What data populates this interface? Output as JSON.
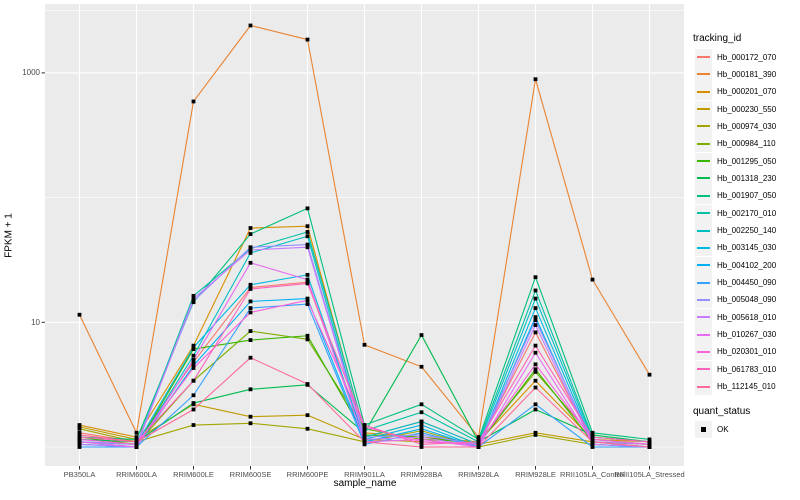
{
  "axes": {
    "x_title": "sample_name",
    "y_title": "FPKM + 1"
  },
  "legend": {
    "tracking_title": "tracking_id",
    "quant_title": "quant_status",
    "quant_items": [
      {
        "label": "OK",
        "marker": "black-square"
      }
    ]
  },
  "chart_data": {
    "type": "line",
    "title": "",
    "xlabel": "sample_name",
    "ylabel": "FPKM + 1",
    "y_scale": "log10",
    "y_ticks": [
      10,
      1000
    ],
    "y_minor_ticks": [
      1,
      100,
      3162
    ],
    "ylim_approx": [
      0.9,
      3500
    ],
    "grid": true,
    "legend_position": "right",
    "panel_bg": "#ebebeb",
    "grid_color": "#ffffff",
    "point_color": "#000000",
    "point_shape": "square",
    "categories": [
      "PB350LA",
      "RRIM600LA",
      "RRIM600LE",
      "RRIM600SE",
      "RRIM600PE",
      "RRIM901LA",
      "RRIM928BA",
      "RRIM928LA",
      "RRIM928LE",
      "RRII105LA_Control",
      "RRII105LA_Stressed"
    ],
    "series": [
      {
        "name": "Hb_000172_070",
        "color": "#F8766D",
        "values": [
          1.3,
          1.1,
          4.8,
          19,
          21,
          1.2,
          1.6,
          1.05,
          8.3,
          1.1,
          1.05
        ]
      },
      {
        "name": "Hb_000181_390",
        "color": "#EA8331",
        "values": [
          11.5,
          1.3,
          590,
          2400,
          1850,
          6.6,
          4.4,
          1.2,
          890,
          22,
          3.8
        ]
      },
      {
        "name": "Hb_000201_070",
        "color": "#D89000",
        "values": [
          1.5,
          1.2,
          6.5,
          57,
          59,
          1.3,
          1.2,
          1.1,
          3.4,
          1.15,
          1.1
        ]
      },
      {
        "name": "Hb_000230_550",
        "color": "#C09B00",
        "values": [
          1.45,
          1.15,
          2.2,
          1.75,
          1.8,
          1.15,
          1.1,
          1.05,
          1.3,
          1.1,
          1.05
        ]
      },
      {
        "name": "Hb_000974_030",
        "color": "#A3A500",
        "values": [
          1.4,
          1.1,
          1.5,
          1.55,
          1.4,
          1.1,
          1.35,
          1.0,
          1.25,
          1.05,
          1.0
        ]
      },
      {
        "name": "Hb_000984_110",
        "color": "#7CAE00",
        "values": [
          1.2,
          1.05,
          3.4,
          8.5,
          7.3,
          1.4,
          1.15,
          1.1,
          4.0,
          1.2,
          1.1
        ]
      },
      {
        "name": "Hb_001295_050",
        "color": "#39B600",
        "values": [
          1.1,
          1.0,
          6.1,
          7.2,
          7.8,
          1.25,
          1.2,
          1.05,
          4.2,
          1.1,
          1.0
        ]
      },
      {
        "name": "Hb_001318_230",
        "color": "#00BB4E",
        "values": [
          1.15,
          1.1,
          2.25,
          2.9,
          3.15,
          1.3,
          7.9,
          1.1,
          2.0,
          1.25,
          1.1
        ]
      },
      {
        "name": "Hb_001907_050",
        "color": "#00BF7D",
        "values": [
          1.2,
          1.15,
          14.5,
          51,
          82,
          1.5,
          2.2,
          1.15,
          23,
          1.3,
          1.15
        ]
      },
      {
        "name": "Hb_002170_010",
        "color": "#00C1A3",
        "values": [
          1.1,
          1.05,
          16.3,
          39,
          53,
          1.35,
          1.9,
          1.1,
          18,
          1.2,
          1.1
        ]
      },
      {
        "name": "Hb_002250_140",
        "color": "#00BFC4",
        "values": [
          1.05,
          1.0,
          5.4,
          36,
          49,
          1.2,
          1.6,
          1.05,
          15.5,
          1.15,
          1.05
        ]
      },
      {
        "name": "Hb_003145_030",
        "color": "#00BAE0",
        "values": [
          1.1,
          1.05,
          6.3,
          20,
          24,
          1.15,
          1.5,
          1.0,
          13,
          1.1,
          1.0
        ]
      },
      {
        "name": "Hb_004102_200",
        "color": "#00B0F6",
        "values": [
          1.05,
          1.0,
          4.5,
          14.7,
          15.5,
          1.1,
          1.4,
          1.0,
          11,
          1.05,
          1.0
        ]
      },
      {
        "name": "Hb_004450_090",
        "color": "#35A2FF",
        "values": [
          1.0,
          1.0,
          2.6,
          13,
          14,
          1.05,
          1.3,
          1.0,
          2.2,
          1.0,
          1.0
        ]
      },
      {
        "name": "Hb_005048_090",
        "color": "#9590FF",
        "values": [
          1.1,
          1.05,
          14.8,
          40,
          42,
          1.2,
          1.25,
          1.05,
          10.4,
          1.1,
          1.05
        ]
      },
      {
        "name": "Hb_005618_010",
        "color": "#C77CFF",
        "values": [
          1.05,
          1.0,
          15.5,
          38,
          40,
          1.15,
          1.2,
          1.0,
          9.5,
          1.05,
          1.0
        ]
      },
      {
        "name": "Hb_010267_030",
        "color": "#E76BF3",
        "values": [
          1.1,
          1.0,
          5.0,
          30,
          22,
          1.1,
          1.15,
          1.0,
          5.7,
          1.1,
          1.0
        ]
      },
      {
        "name": "Hb_020301_010",
        "color": "#FA62DB",
        "values": [
          1.15,
          1.05,
          4.3,
          12,
          15,
          1.45,
          1.1,
          1.05,
          4.6,
          1.15,
          1.05
        ]
      },
      {
        "name": "Hb_061783_010",
        "color": "#FF62BC",
        "values": [
          1.2,
          1.1,
          3.4,
          18.5,
          20.5,
          1.5,
          1.05,
          1.1,
          6.5,
          1.2,
          1.1
        ]
      },
      {
        "name": "Hb_112145_010",
        "color": "#FF6A98",
        "values": [
          1.25,
          1.1,
          2.0,
          5.2,
          3.2,
          1.1,
          1.0,
          1.0,
          3.0,
          1.1,
          1.0
        ]
      }
    ]
  }
}
